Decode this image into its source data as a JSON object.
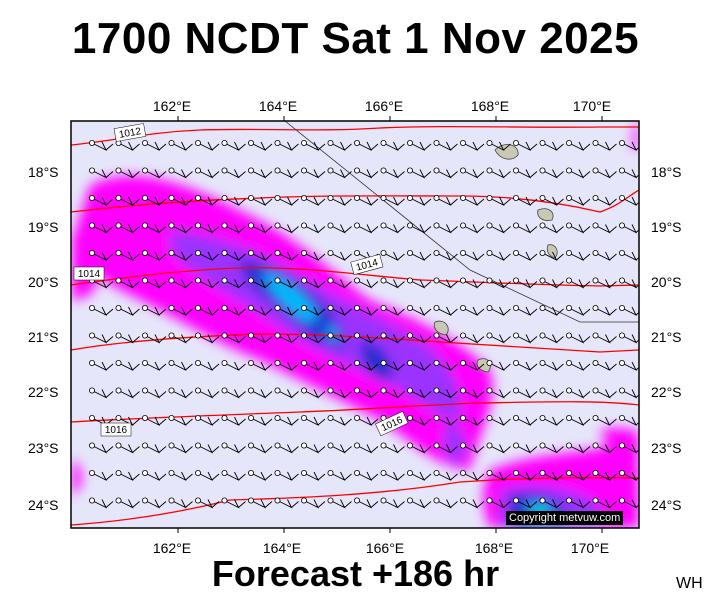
{
  "title": "1700 NCDT Sat 1 Nov 2025",
  "footer": "Forecast +186 hr",
  "initials": "WH",
  "copyright": "Copyright metvuw.com",
  "axes": {
    "lon_labels": [
      "162°E",
      "164°E",
      "166°E",
      "168°E",
      "170°E"
    ],
    "lat_labels": [
      "18°S",
      "19°S",
      "20°S",
      "21°S",
      "22°S",
      "23°S",
      "24°S"
    ]
  },
  "isobars": {
    "labels": [
      "1012",
      "1014",
      "1014",
      "1016",
      "1016"
    ]
  },
  "colors": {
    "background": "#e6e6fa",
    "rain_light": "#ff00ff",
    "rain_medium": "#9b30ff",
    "rain_heavy": "#1e2fd0",
    "rain_core": "#00bfff",
    "rain_peak": "#00ff66",
    "isobar": "#ff0000",
    "land": "#c8c8b4"
  }
}
